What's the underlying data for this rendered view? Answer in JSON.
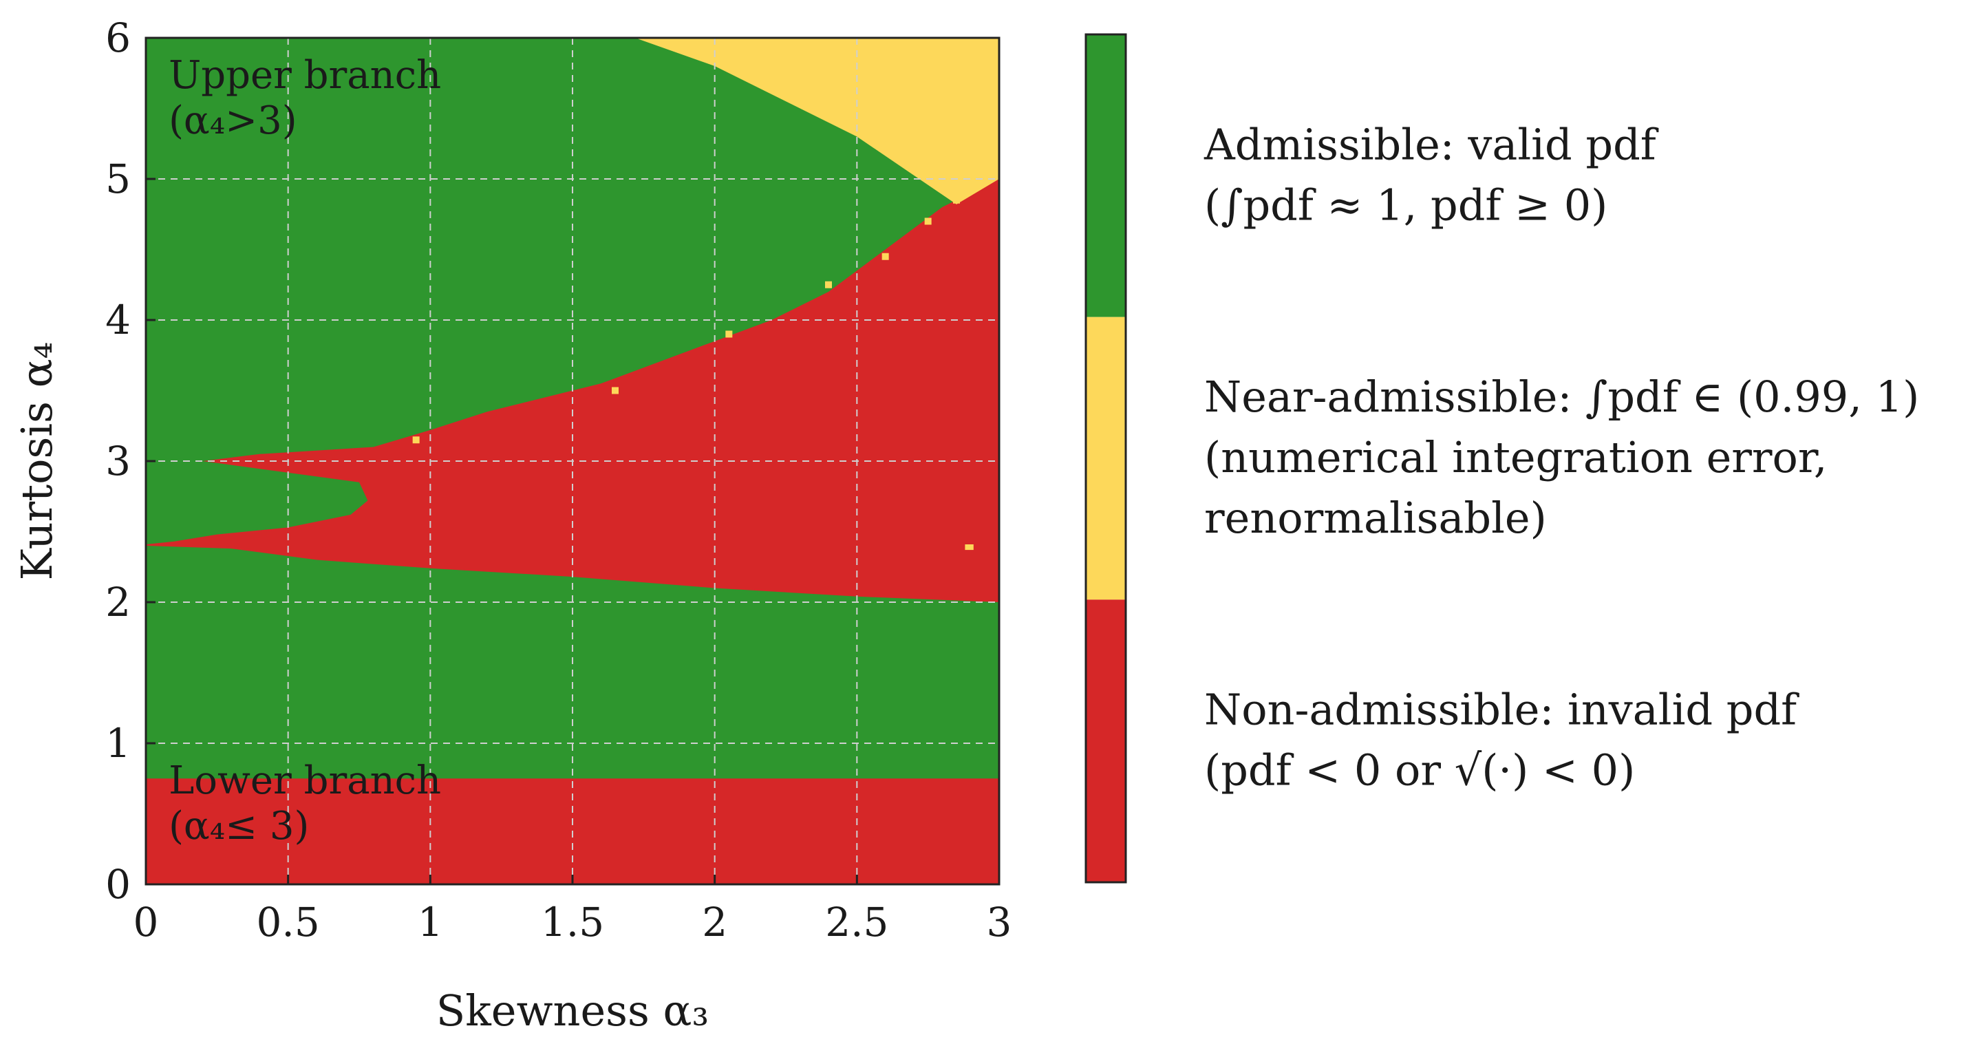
{
  "chart_data": {
    "type": "heatmap",
    "title": "",
    "xlabel": "Skewness  α₃",
    "ylabel": "Kurtosis  α₄",
    "xlim": [
      0,
      3
    ],
    "ylim": [
      0,
      6
    ],
    "x_ticks": [
      "0",
      "0.5",
      "1",
      "1.5",
      "2",
      "2.5",
      "3"
    ],
    "x_tick_values": [
      0,
      0.5,
      1,
      1.5,
      2,
      2.5,
      3
    ],
    "y_ticks": [
      "0",
      "1",
      "2",
      "3",
      "4",
      "5",
      "6"
    ],
    "y_tick_values": [
      0,
      1,
      2,
      3,
      4,
      5,
      6
    ],
    "grid": true,
    "colors": {
      "admissible": "#2e962e",
      "near_admissible": "#fdd85a",
      "non_admissible": "#d62728",
      "grid": "#cfcfcf"
    },
    "categories": [
      "Admissible",
      "Near-admissible",
      "Non-admissible"
    ],
    "regions": [
      {
        "category": "Admissible",
        "description": "background (all remaining area)"
      },
      {
        "category": "Non-admissible",
        "name": "lower band",
        "polygon": [
          [
            0,
            0
          ],
          [
            3,
            0
          ],
          [
            3,
            0.75
          ],
          [
            0,
            0.75
          ]
        ]
      },
      {
        "category": "Non-admissible",
        "name": "central wedge",
        "polygon": [
          [
            0,
            2.4
          ],
          [
            0.3,
            2.38
          ],
          [
            0.6,
            2.3
          ],
          [
            1.0,
            2.24
          ],
          [
            1.5,
            2.18
          ],
          [
            2.0,
            2.1
          ],
          [
            2.5,
            2.04
          ],
          [
            3.0,
            2.0
          ],
          [
            3.0,
            5.0
          ],
          [
            2.8,
            4.8
          ],
          [
            2.6,
            4.5
          ],
          [
            2.4,
            4.2
          ],
          [
            2.2,
            4.0
          ],
          [
            2.0,
            3.85
          ],
          [
            1.8,
            3.7
          ],
          [
            1.6,
            3.55
          ],
          [
            1.4,
            3.45
          ],
          [
            1.2,
            3.35
          ],
          [
            1.0,
            3.22
          ],
          [
            0.8,
            3.1
          ],
          [
            0.4,
            3.05
          ],
          [
            0.2,
            3.0
          ],
          [
            0.75,
            2.85
          ],
          [
            0.78,
            2.72
          ],
          [
            0.72,
            2.62
          ],
          [
            0.5,
            2.53
          ],
          [
            0.25,
            2.48
          ],
          [
            0.1,
            2.43
          ],
          [
            0,
            2.41
          ]
        ]
      },
      {
        "category": "Near-admissible",
        "name": "upper-right corner",
        "polygon": [
          [
            1.72,
            6
          ],
          [
            3,
            6
          ],
          [
            3,
            5.0
          ],
          [
            2.85,
            4.82
          ],
          [
            2.5,
            5.3
          ],
          [
            2.2,
            5.6
          ],
          [
            2.0,
            5.8
          ]
        ]
      },
      {
        "category": "Near-admissible",
        "name": "isolated point",
        "polygon": [
          [
            2.88,
            2.37
          ],
          [
            2.91,
            2.37
          ],
          [
            2.91,
            2.41
          ],
          [
            2.88,
            2.41
          ]
        ]
      }
    ],
    "boundary_dots": {
      "category": "Near-admissible",
      "points": [
        [
          0.95,
          3.15
        ],
        [
          1.65,
          3.5
        ],
        [
          2.05,
          3.9
        ],
        [
          2.4,
          4.25
        ],
        [
          2.6,
          4.45
        ],
        [
          2.75,
          4.7
        ],
        [
          2.85,
          4.85
        ]
      ]
    },
    "annotations": [
      {
        "line1": "Upper branch",
        "line2": "(α₄>3)",
        "x": 0.08,
        "y": 5.85
      },
      {
        "line1": "Lower branch",
        "line2": "(α₄≤ 3)",
        "x": 0.08,
        "y": 0.85
      }
    ],
    "legend": {
      "placement": "right",
      "entries": [
        {
          "label": "Admissible",
          "lines": [
            "Admissible: valid pdf",
            "(∫pdf ≈ 1,  pdf ≥ 0)"
          ]
        },
        {
          "label": "Near-admissible",
          "lines": [
            "Near-admissible: ∫pdf ∈ (0.99, 1)",
            "(numerical integration error,",
            "renormalisable)"
          ]
        },
        {
          "label": "Non-admissible",
          "lines": [
            "Non-admissible: invalid pdf",
            "(pdf < 0  or √(·) < 0)"
          ]
        }
      ]
    }
  }
}
